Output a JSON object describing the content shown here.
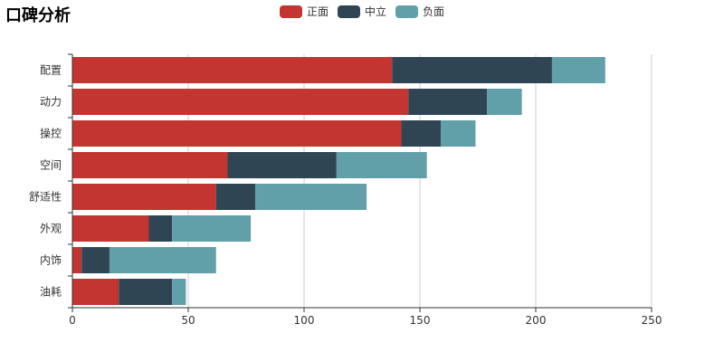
{
  "chart_data": {
    "type": "bar",
    "orientation": "horizontal",
    "stacked": true,
    "title": "口碑分析",
    "categories": [
      "配置",
      "动力",
      "操控",
      "空间",
      "舒适性",
      "外观",
      "内饰",
      "油耗"
    ],
    "series": [
      {
        "name": "正面",
        "color": "#c23531",
        "values": [
          138,
          145,
          142,
          67,
          62,
          33,
          4,
          20
        ]
      },
      {
        "name": "中立",
        "color": "#2f4554",
        "values": [
          69,
          34,
          17,
          47,
          17,
          10,
          12,
          23
        ]
      },
      {
        "name": "负面",
        "color": "#61a0a8",
        "values": [
          23,
          15,
          15,
          39,
          48,
          34,
          46,
          6
        ]
      }
    ],
    "xlabel": "",
    "ylabel": "",
    "xlim": [
      0,
      250
    ],
    "xticks": [
      "0",
      "50",
      "100",
      "150",
      "200",
      "250"
    ],
    "grid": true,
    "legend_position": "top-center"
  }
}
